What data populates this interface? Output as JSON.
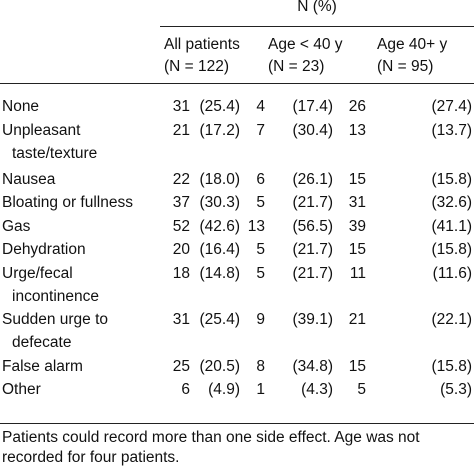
{
  "table": {
    "spanner": "N (%)",
    "columns": [
      {
        "name": "All patients",
        "n": "(N = 122)"
      },
      {
        "name": "Age < 40 y",
        "n": "(N = 23)"
      },
      {
        "name": "Age 40+ y",
        "n": "(N = 95)"
      }
    ],
    "rows": [
      {
        "label": [
          "None"
        ],
        "cells": [
          "31",
          "(25.4)",
          "4",
          "(17.4)",
          "26",
          "(27.4)"
        ]
      },
      {
        "label": [
          "Unpleasant",
          "taste/texture"
        ],
        "cells": [
          "21",
          "(17.2)",
          "7",
          "(30.4)",
          "13",
          "(13.7)"
        ]
      },
      {
        "label": [
          "Nausea"
        ],
        "cells": [
          "22",
          "(18.0)",
          "6",
          "(26.1)",
          "15",
          "(15.8)"
        ]
      },
      {
        "label": [
          "Bloating or fullness"
        ],
        "cells": [
          "37",
          "(30.3)",
          "5",
          "(21.7)",
          "31",
          "(32.6)"
        ]
      },
      {
        "label": [
          "Gas"
        ],
        "cells": [
          "52",
          "(42.6)",
          "13",
          "(56.5)",
          "39",
          "(41.1)"
        ]
      },
      {
        "label": [
          "Dehydration"
        ],
        "cells": [
          "20",
          "(16.4)",
          "5",
          "(21.7)",
          "15",
          "(15.8)"
        ]
      },
      {
        "label": [
          "Urge/fecal",
          "incontinence"
        ],
        "cells": [
          "18",
          "(14.8)",
          "5",
          "(21.7)",
          "11",
          "(11.6)"
        ]
      },
      {
        "label": [
          "Sudden urge to",
          "defecate"
        ],
        "cells": [
          "31",
          "(25.4)",
          "9",
          "(39.1)",
          "21",
          "(22.1)"
        ]
      },
      {
        "label": [
          "False alarm"
        ],
        "cells": [
          "25",
          "(20.5)",
          "8",
          "(34.8)",
          "15",
          "(15.8)"
        ]
      },
      {
        "label": [
          "Other"
        ],
        "cells": [
          "6",
          "(4.9)",
          "1",
          "(4.3)",
          "5",
          "(5.3)"
        ]
      }
    ],
    "footnote": [
      "Patients could record more than one side effect. Age was not",
      "recorded for four patients."
    ]
  }
}
